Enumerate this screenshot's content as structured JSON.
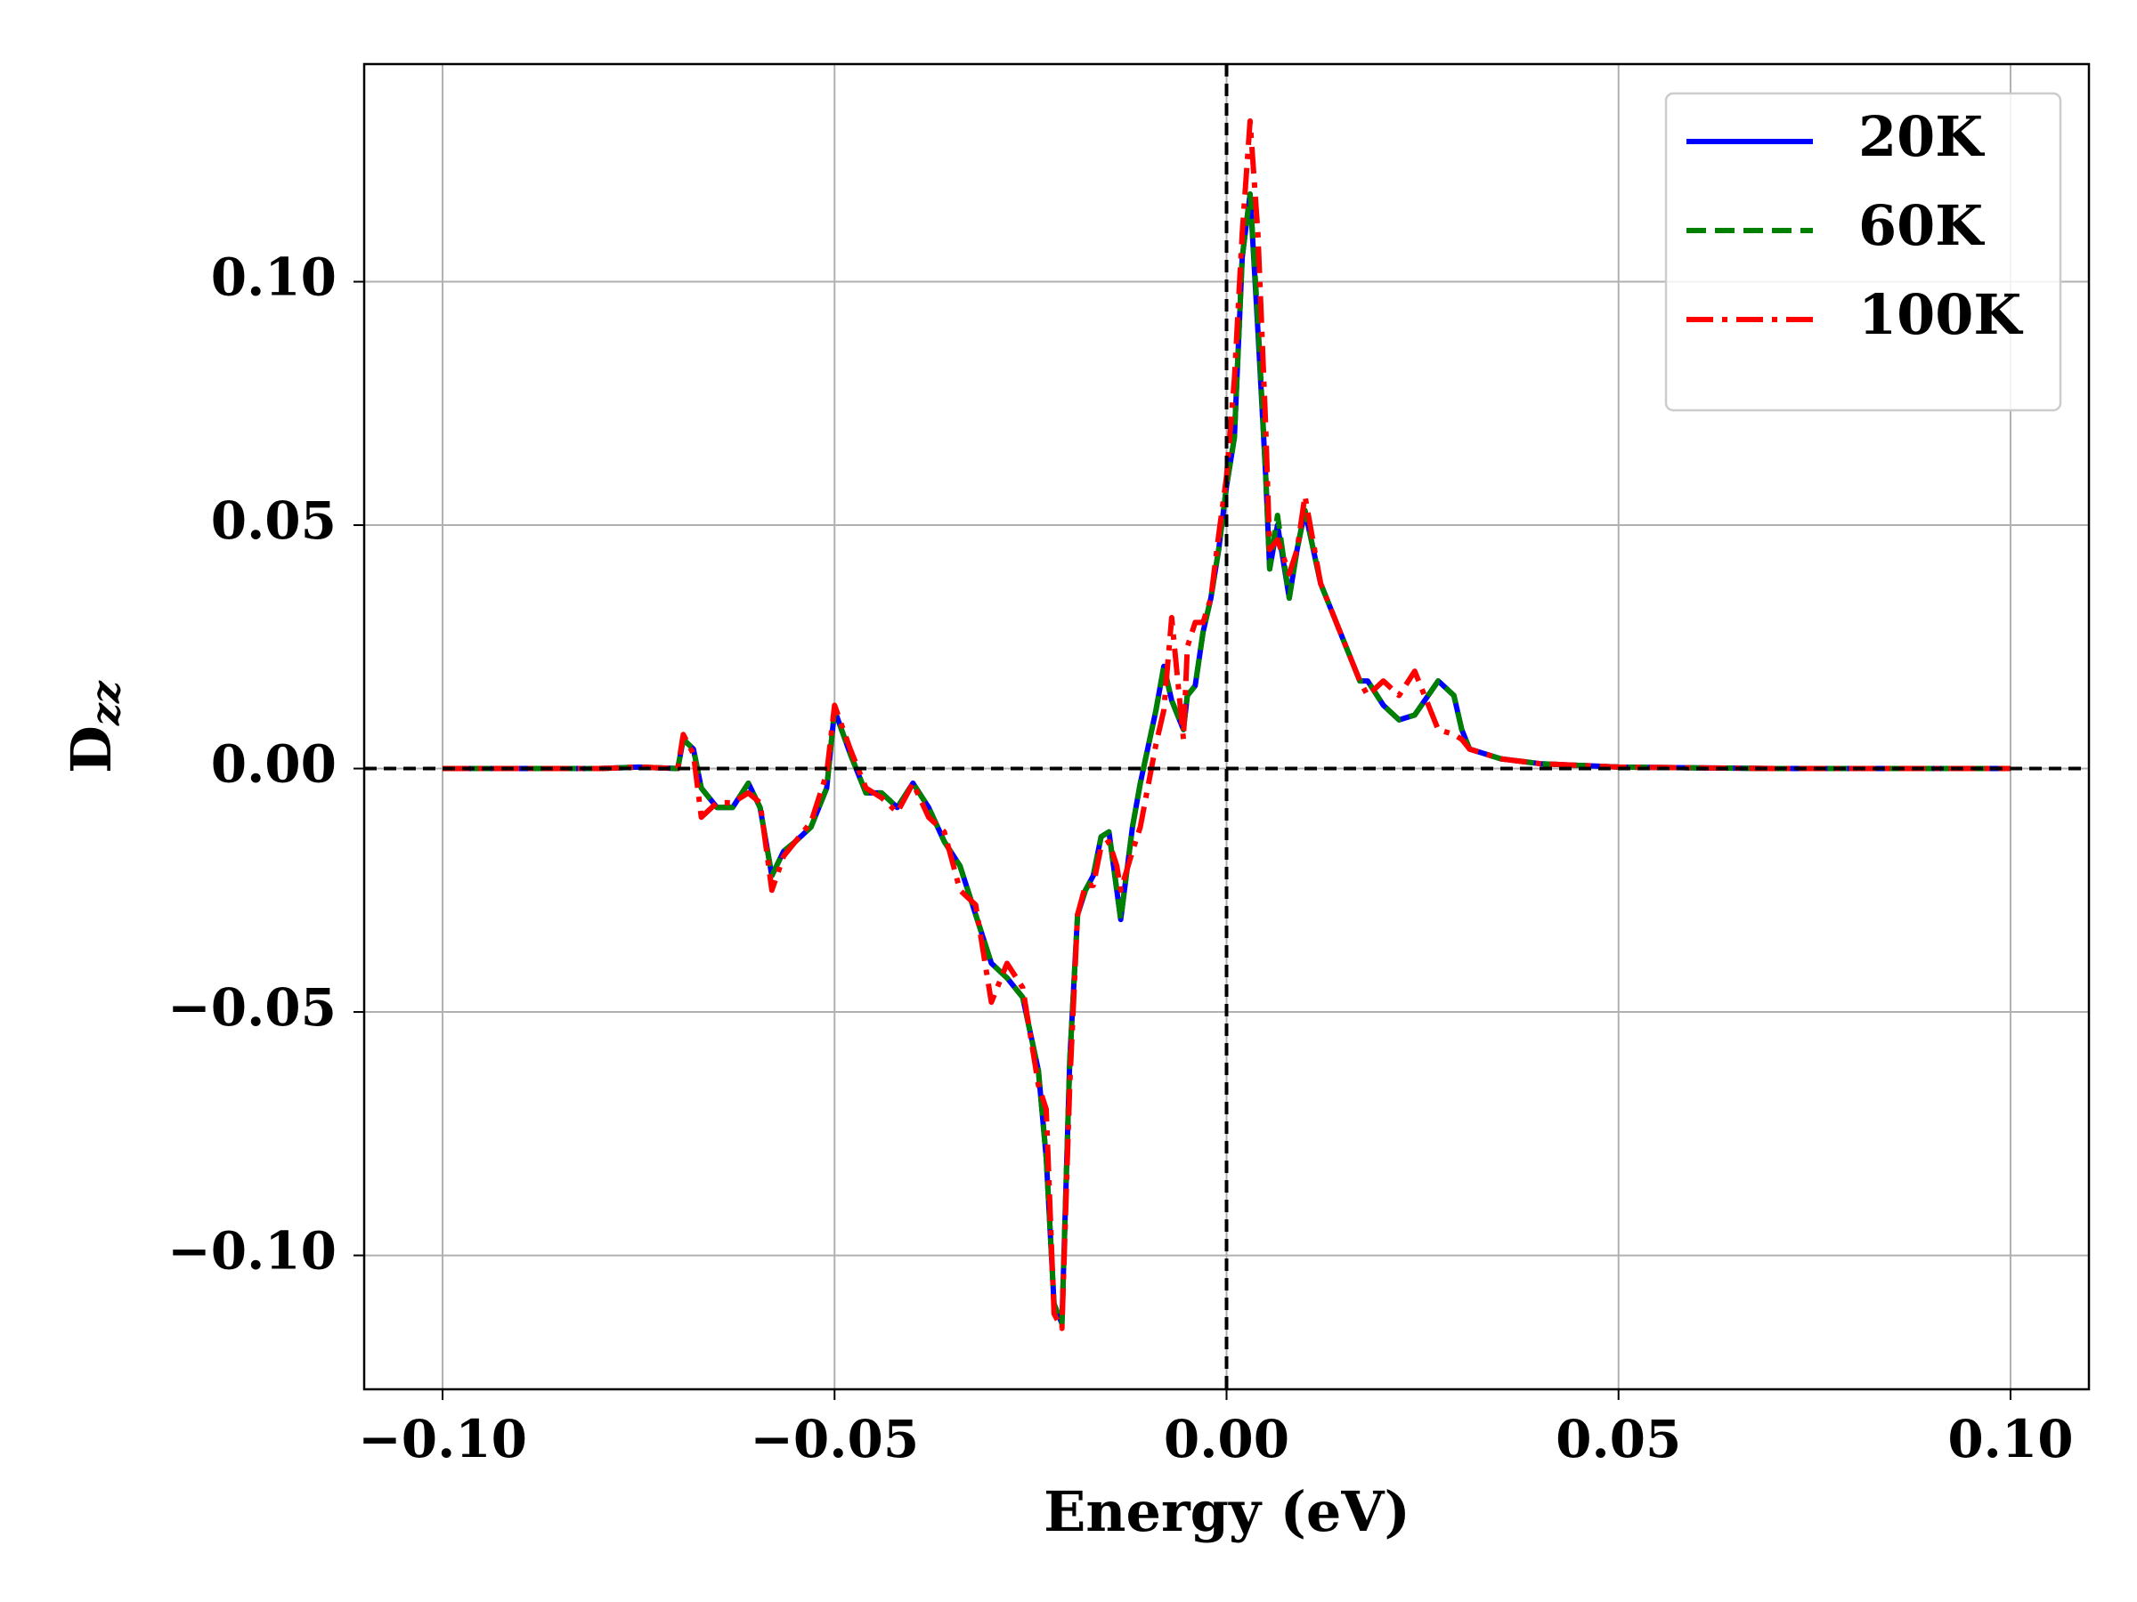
{
  "chart_data": {
    "type": "line",
    "xlabel": "Energy (eV)",
    "ylabel": {
      "main": "D",
      "subscript": "zz"
    },
    "x": [
      -0.1,
      -0.08,
      -0.075,
      -0.07,
      -0.0693,
      -0.068,
      -0.067,
      -0.065,
      -0.063,
      -0.061,
      -0.0595,
      -0.058,
      -0.0565,
      -0.055,
      -0.053,
      -0.051,
      -0.05,
      -0.048,
      -0.046,
      -0.044,
      -0.042,
      -0.04,
      -0.038,
      -0.036,
      -0.034,
      -0.032,
      -0.03,
      -0.028,
      -0.026,
      -0.024,
      -0.023,
      -0.022,
      -0.021,
      -0.02,
      -0.019,
      -0.018,
      -0.017,
      -0.016,
      -0.015,
      -0.014,
      -0.0135,
      -0.012,
      -0.011,
      -0.009,
      -0.008,
      -0.007,
      -0.0055,
      -0.005,
      -0.004,
      -0.003,
      -0.002,
      -0.001,
      0,
      0.001,
      0.002,
      0.003,
      0.004,
      0.005,
      0.0055,
      0.0065,
      0.008,
      0.009,
      0.01,
      0.012,
      0.014,
      0.016,
      0.017,
      0.018,
      0.02,
      0.022,
      0.024,
      0.027,
      0.029,
      0.03,
      0.031,
      0.033,
      0.035,
      0.04,
      0.05,
      0.07,
      0.1
    ],
    "series": [
      {
        "name": "20K",
        "color": "#0000ff",
        "style": "solid",
        "values": [
          0,
          0,
          0.0003,
          0,
          0.006,
          0.004,
          -0.004,
          -0.008,
          -0.008,
          -0.003,
          -0.008,
          -0.022,
          -0.017,
          -0.015,
          -0.012,
          -0.004,
          0.012,
          0.003,
          -0.005,
          -0.005,
          -0.008,
          -0.003,
          -0.008,
          -0.015,
          -0.02,
          -0.03,
          -0.04,
          -0.043,
          -0.047,
          -0.062,
          -0.08,
          -0.11,
          -0.114,
          -0.06,
          -0.03,
          -0.025,
          -0.022,
          -0.014,
          -0.013,
          -0.025,
          -0.031,
          -0.012,
          -0.003,
          0.012,
          0.021,
          0.014,
          0.008,
          0.015,
          0.017,
          0.028,
          0.035,
          0.045,
          0.058,
          0.068,
          0.105,
          0.118,
          0.09,
          0.06,
          0.041,
          0.05,
          0.035,
          0.045,
          0.053,
          0.038,
          0.03,
          0.022,
          0.018,
          0.018,
          0.013,
          0.01,
          0.011,
          0.018,
          0.015,
          0.008,
          0.004,
          0.003,
          0.002,
          0.001,
          0.0003,
          0,
          0
        ]
      },
      {
        "name": "60K",
        "color": "#008000",
        "style": "dashed",
        "values": [
          0,
          0,
          0.0003,
          0,
          0.006,
          0.004,
          -0.004,
          -0.008,
          -0.008,
          -0.003,
          -0.008,
          -0.022,
          -0.017,
          -0.015,
          -0.012,
          -0.004,
          0.012,
          0.003,
          -0.005,
          -0.005,
          -0.008,
          -0.003,
          -0.008,
          -0.015,
          -0.02,
          -0.03,
          -0.04,
          -0.043,
          -0.047,
          -0.062,
          -0.08,
          -0.11,
          -0.114,
          -0.06,
          -0.03,
          -0.025,
          -0.022,
          -0.014,
          -0.013,
          -0.025,
          -0.031,
          -0.012,
          -0.003,
          0.012,
          0.021,
          0.014,
          0.008,
          0.015,
          0.017,
          0.028,
          0.035,
          0.045,
          0.058,
          0.068,
          0.105,
          0.118,
          0.092,
          0.06,
          0.041,
          0.052,
          0.035,
          0.045,
          0.053,
          0.038,
          0.03,
          0.022,
          0.018,
          0.018,
          0.013,
          0.01,
          0.011,
          0.018,
          0.015,
          0.008,
          0.004,
          0.003,
          0.002,
          0.001,
          0.0003,
          0,
          0
        ]
      },
      {
        "name": "100K",
        "color": "#ff0000",
        "style": "dashdot",
        "values": [
          0,
          0,
          0.0003,
          0,
          0.007,
          0.003,
          -0.01,
          -0.007,
          -0.007,
          -0.005,
          -0.007,
          -0.025,
          -0.018,
          -0.015,
          -0.011,
          -0.001,
          0.013,
          0.004,
          -0.004,
          -0.006,
          -0.009,
          -0.003,
          -0.01,
          -0.013,
          -0.025,
          -0.028,
          -0.048,
          -0.04,
          -0.045,
          -0.065,
          -0.07,
          -0.112,
          -0.115,
          -0.065,
          -0.03,
          -0.024,
          -0.024,
          -0.016,
          -0.015,
          -0.02,
          -0.025,
          -0.017,
          -0.012,
          0.005,
          0.012,
          0.031,
          0.006,
          0.025,
          0.03,
          0.03,
          0.035,
          0.048,
          0.06,
          0.08,
          0.11,
          0.133,
          0.11,
          0.07,
          0.045,
          0.047,
          0.04,
          0.045,
          0.056,
          0.038,
          0.03,
          0.022,
          0.018,
          0.015,
          0.018,
          0.015,
          0.02,
          0.008,
          0.007,
          0.006,
          0.004,
          0.003,
          0.002,
          0.001,
          0.0003,
          0,
          0
        ]
      }
    ],
    "xlim": [
      -0.11,
      0.11
    ],
    "ylim": [
      -0.1275,
      0.1447
    ],
    "xticks": [
      {
        "value": -0.1,
        "label": "−0.10"
      },
      {
        "value": -0.05,
        "label": "−0.05"
      },
      {
        "value": 0,
        "label": "0.00"
      },
      {
        "value": 0.05,
        "label": "0.05"
      },
      {
        "value": 0.1,
        "label": "0.10"
      }
    ],
    "yticks": [
      {
        "value": -0.1,
        "label": "−0.10"
      },
      {
        "value": -0.05,
        "label": "−0.05"
      },
      {
        "value": 0,
        "label": "0.00"
      },
      {
        "value": 0.05,
        "label": "0.05"
      },
      {
        "value": 0.1,
        "label": "0.10"
      }
    ],
    "reference_lines": {
      "x": 0,
      "y": 0
    },
    "grid": true,
    "legend": "upper right"
  }
}
